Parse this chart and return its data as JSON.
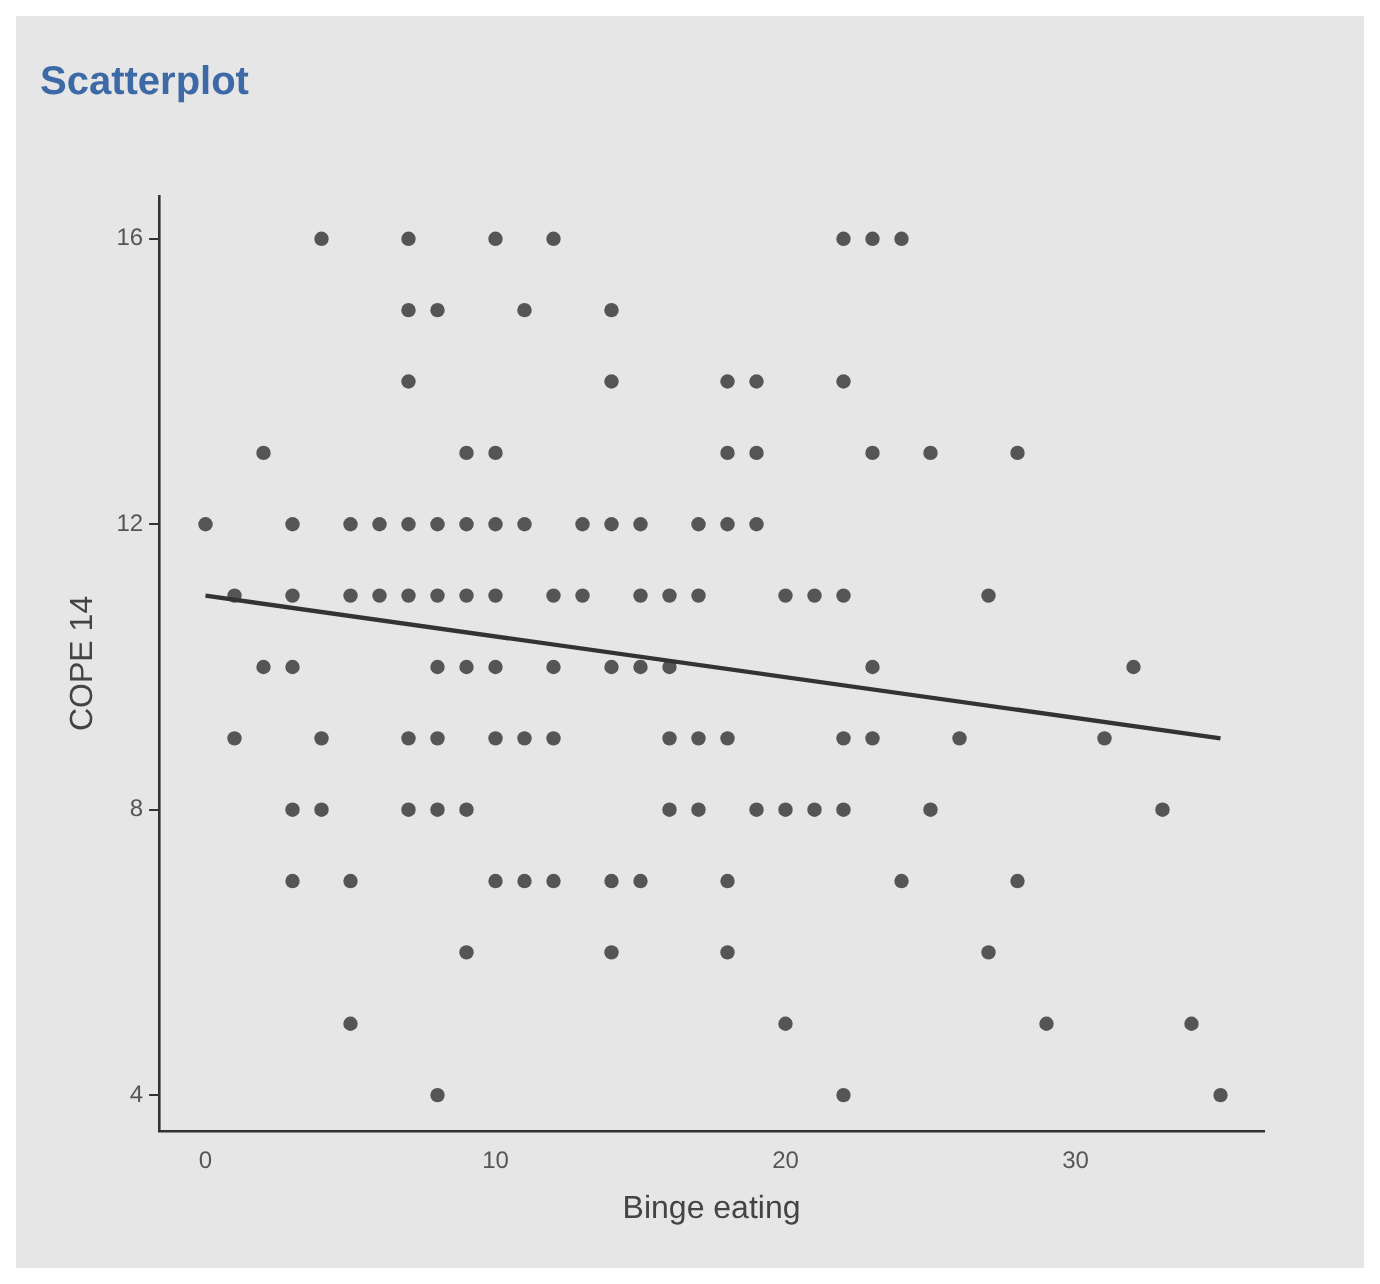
{
  "chart_data": {
    "type": "scatter",
    "title": "Scatterplot",
    "xlabel": "Binge eating",
    "ylabel": "COPE 14",
    "xlim": [
      -1.6,
      36.5
    ],
    "ylim": [
      3.5,
      16.6
    ],
    "xticks": [
      0,
      10,
      20,
      30
    ],
    "yticks": [
      4,
      8,
      12,
      16
    ],
    "grid": false,
    "legend": false,
    "marker": "circle",
    "series": [
      {
        "color": "#555555",
        "x": [
          4,
          7,
          10,
          12,
          22,
          23,
          24,
          7,
          8,
          11,
          14,
          7,
          14,
          18,
          19,
          22,
          2,
          9,
          10,
          18,
          19,
          23,
          25,
          28,
          0,
          3,
          5,
          6,
          7,
          8,
          9,
          10,
          11,
          13,
          14,
          15,
          17,
          18,
          19,
          1,
          3,
          5,
          6,
          7,
          8,
          9,
          10,
          12,
          13,
          15,
          16,
          17,
          20,
          21,
          22,
          27,
          2,
          3,
          8,
          9,
          10,
          12,
          14,
          15,
          16,
          23,
          32,
          1,
          4,
          7,
          8,
          10,
          11,
          12,
          16,
          17,
          18,
          22,
          23,
          26,
          31,
          3,
          4,
          7,
          8,
          9,
          16,
          17,
          19,
          20,
          21,
          22,
          25,
          33,
          3,
          5,
          10,
          11,
          12,
          14,
          15,
          18,
          24,
          28,
          9,
          14,
          18,
          27,
          5,
          20,
          29,
          34,
          8,
          22,
          35
        ],
        "values": [
          16,
          16,
          16,
          16,
          16,
          16,
          16,
          15,
          15,
          15,
          15,
          14,
          14,
          14,
          14,
          14,
          13,
          13,
          13,
          13,
          13,
          13,
          13,
          13,
          12,
          12,
          12,
          12,
          12,
          12,
          12,
          12,
          12,
          12,
          12,
          12,
          12,
          12,
          12,
          11,
          11,
          11,
          11,
          11,
          11,
          11,
          11,
          11,
          11,
          11,
          11,
          11,
          11,
          11,
          11,
          11,
          10,
          10,
          10,
          10,
          10,
          10,
          10,
          10,
          10,
          10,
          10,
          9,
          9,
          9,
          9,
          9,
          9,
          9,
          9,
          9,
          9,
          9,
          9,
          9,
          9,
          8,
          8,
          8,
          8,
          8,
          8,
          8,
          8,
          8,
          8,
          8,
          8,
          8,
          7,
          7,
          7,
          7,
          7,
          7,
          7,
          7,
          7,
          7,
          6,
          6,
          6,
          6,
          5,
          5,
          5,
          5,
          4,
          4,
          4
        ]
      },
      {
        "type": "line",
        "color": "#333333",
        "line_style": "solid",
        "marker": "none",
        "x": [
          0,
          35
        ],
        "values": [
          11.0,
          9.0
        ]
      }
    ]
  }
}
